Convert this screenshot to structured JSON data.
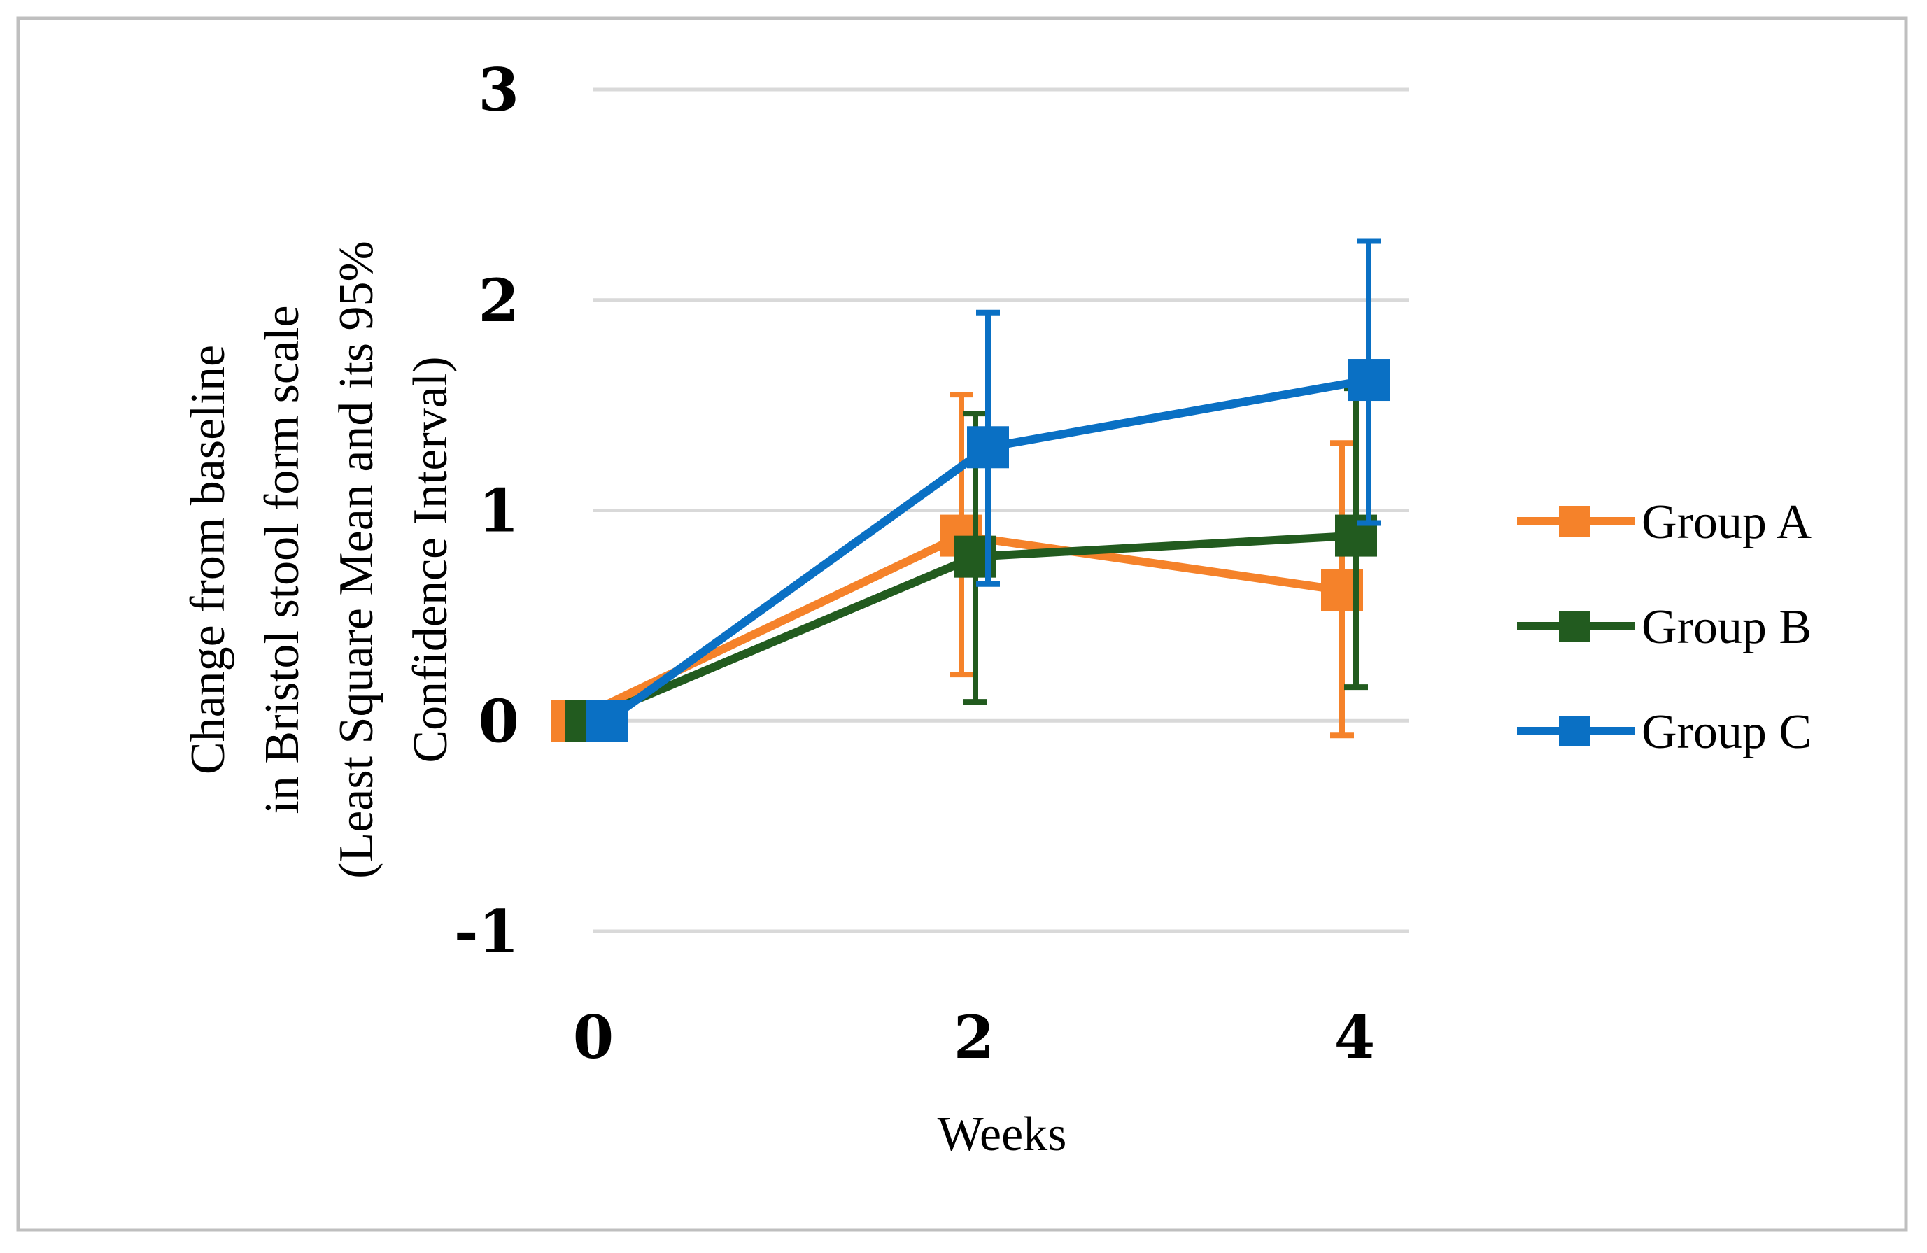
{
  "chart_data": {
    "type": "line",
    "title": "",
    "xlabel": "Weeks",
    "ylabel_lines": [
      "Change from baseline",
      "in Bristol stool form scale",
      "(Least Square Mean and its 95%",
      "Confidence Interval)"
    ],
    "x": [
      0,
      2,
      4
    ],
    "x_tick_labels": [
      "0",
      "2",
      "4"
    ],
    "ylim": [
      -1,
      3
    ],
    "y_ticks": [
      -1,
      0,
      1,
      2,
      3
    ],
    "y_tick_labels": [
      "-1",
      "0",
      "1",
      "2",
      "3"
    ],
    "grid": true,
    "legend_position": "right",
    "series": [
      {
        "name": "Group A",
        "color": "#F5822A",
        "values": [
          0,
          0.88,
          0.62
        ],
        "ci_lower": [
          0,
          0.22,
          -0.07
        ],
        "ci_upper": [
          0,
          1.55,
          1.32
        ]
      },
      {
        "name": "Group B",
        "color": "#225B1F",
        "values": [
          0,
          0.78,
          0.88
        ],
        "ci_lower": [
          0,
          0.09,
          0.16
        ],
        "ci_upper": [
          0,
          1.46,
          1.58
        ]
      },
      {
        "name": "Group C",
        "color": "#0A70C4",
        "values": [
          0,
          1.3,
          1.62
        ],
        "ci_lower": [
          0,
          0.65,
          0.94
        ],
        "ci_upper": [
          0,
          1.94,
          2.28
        ]
      }
    ]
  }
}
